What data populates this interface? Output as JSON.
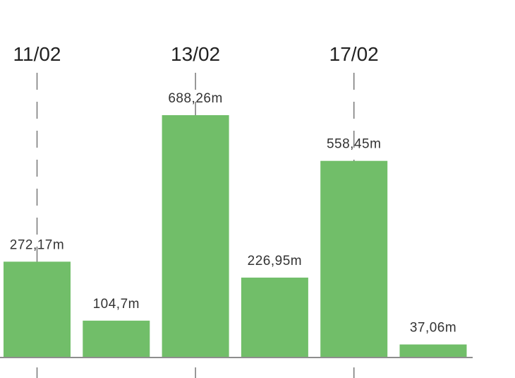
{
  "chart_data": {
    "type": "bar",
    "categories": [
      "11/02",
      null,
      "13/02",
      null,
      "17/02",
      null
    ],
    "values": [
      272.17,
      104.7,
      688.26,
      226.95,
      558.45,
      37.06
    ],
    "value_labels": [
      "272,17m",
      "104,7m",
      "688,26m",
      "226,95m",
      "558,45m",
      "37,06m"
    ],
    "color": "#71be69"
  }
}
